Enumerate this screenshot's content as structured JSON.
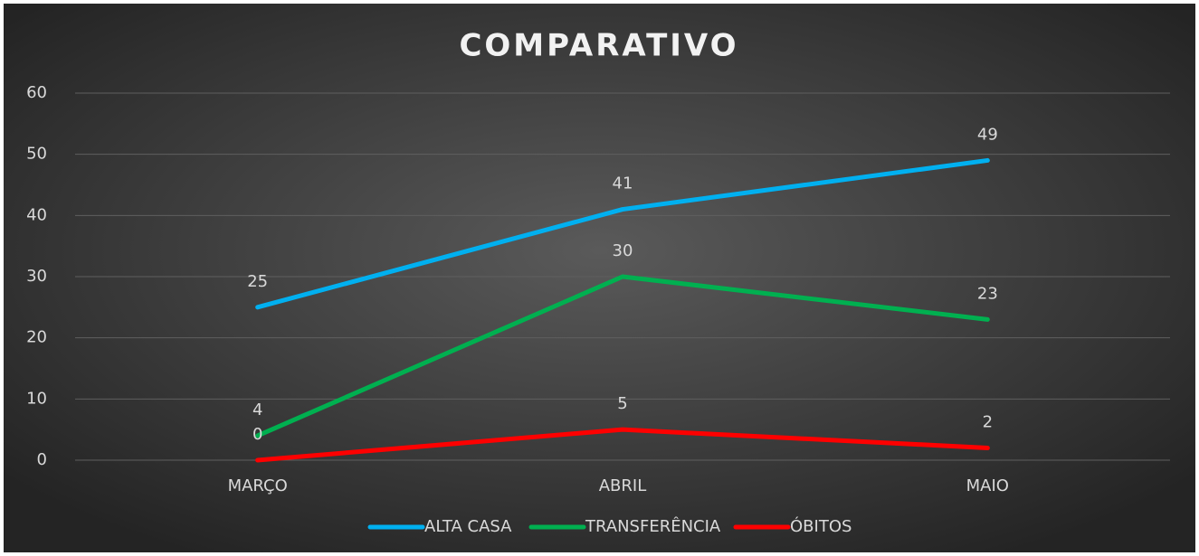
{
  "chart_data": {
    "type": "line",
    "title": "COMPARATIVO",
    "categories": [
      "MARÇO",
      "ABRIL",
      "MAIO"
    ],
    "series": [
      {
        "name": "ALTA CASA",
        "color": "#00b0f0",
        "values": [
          25,
          41,
          49
        ]
      },
      {
        "name": "TRANSFERÊNCIA",
        "color": "#00b050",
        "values": [
          4,
          30,
          23
        ]
      },
      {
        "name": "ÓBITOS",
        "color": "#ff0000",
        "values": [
          0,
          5,
          2
        ]
      }
    ],
    "ylim": [
      0,
      60
    ],
    "yticks": [
      0,
      10,
      20,
      30,
      40,
      50,
      60
    ],
    "grid": true,
    "legend": "bottom"
  }
}
